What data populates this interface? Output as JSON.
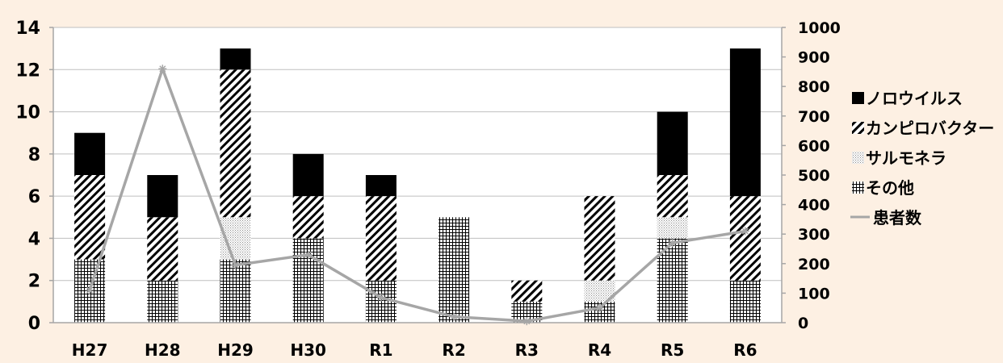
{
  "chart_data": {
    "type": "bar",
    "stacked": true,
    "title": "",
    "xlabel": "",
    "ylabel": "",
    "y2label": "",
    "categories": [
      "H27",
      "H28",
      "H29",
      "H30",
      "R1",
      "R2",
      "R3",
      "R4",
      "R5",
      "R6"
    ],
    "ylim": [
      0,
      14
    ],
    "yticks": [
      "0",
      "2",
      "4",
      "6",
      "8",
      "10",
      "12",
      "14"
    ],
    "y2lim": [
      0,
      1000
    ],
    "y2ticks": [
      "0",
      "100",
      "200",
      "300",
      "400",
      "500",
      "600",
      "700",
      "800",
      "900",
      "1000"
    ],
    "grid": true,
    "legend_position": "right",
    "series": [
      {
        "name": "その他",
        "pattern": "grid",
        "values": [
          3,
          2,
          3,
          4,
          2,
          5,
          1,
          1,
          4,
          2
        ]
      },
      {
        "name": "サルモネラ",
        "pattern": "dots",
        "values": [
          0,
          0,
          2,
          0,
          0,
          0,
          0,
          1,
          1,
          0
        ]
      },
      {
        "name": "カンピロバクター",
        "pattern": "diagonal",
        "values": [
          4,
          3,
          7,
          2,
          4,
          0,
          1,
          4,
          2,
          4
        ]
      },
      {
        "name": "ノロウイルス",
        "pattern": "solid",
        "color": "#000000",
        "values": [
          2,
          2,
          1,
          2,
          1,
          0,
          0,
          0,
          3,
          7
        ]
      }
    ],
    "line_series": {
      "name": "患者数",
      "axis": "right",
      "color": "#a6a6a6",
      "values": [
        110,
        860,
        195,
        230,
        85,
        20,
        5,
        50,
        270,
        310
      ]
    },
    "legend_order": [
      "ノロウイルス",
      "カンピロバクター",
      "サルモネラ",
      "その他",
      "患者数"
    ]
  }
}
